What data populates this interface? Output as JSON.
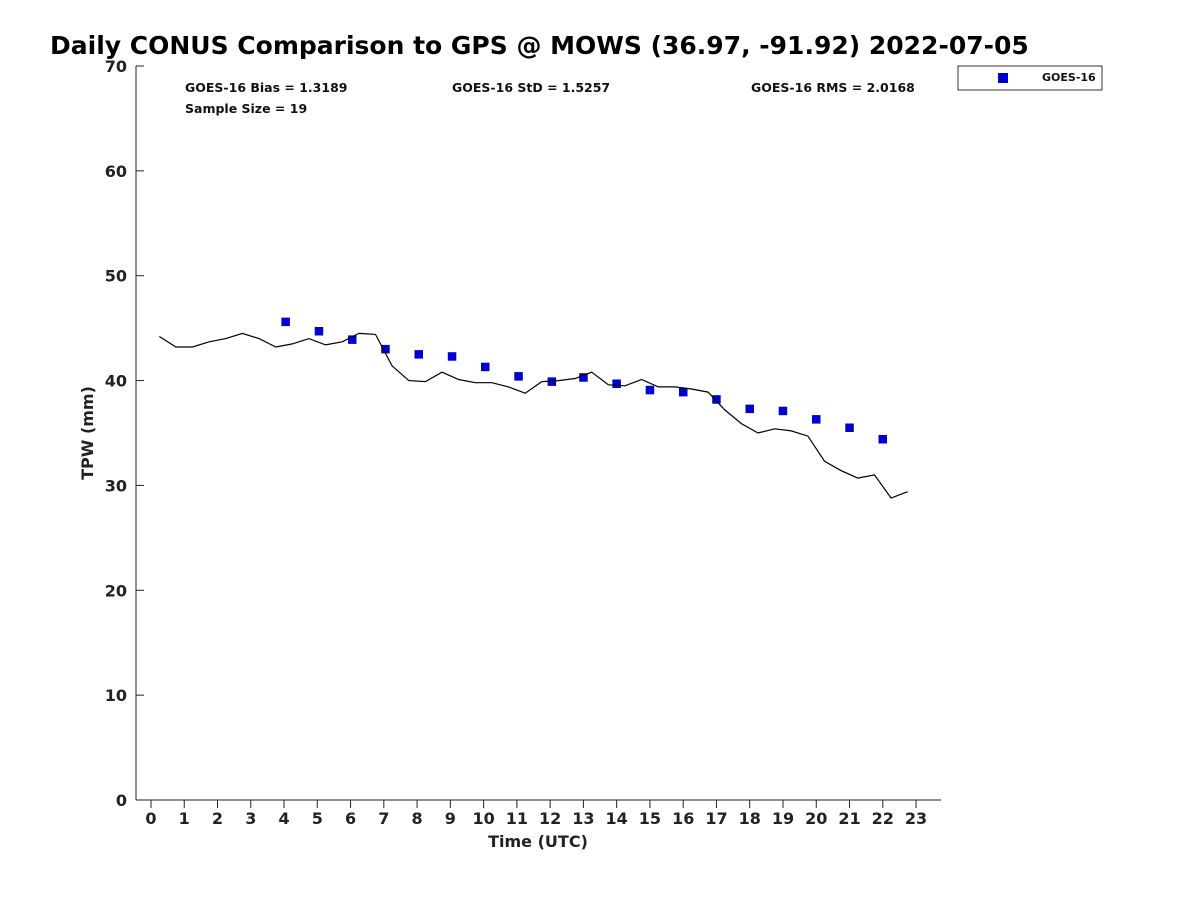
{
  "chart_data": {
    "type": "scatter",
    "title": "Daily CONUS Comparison to GPS @ MOWS (36.97, -91.92) 2022-07-05",
    "xlabel": "Time (UTC)",
    "ylabel": "TPW (mm)",
    "xlim": [
      -0.45,
      23.75
    ],
    "ylim": [
      0,
      70
    ],
    "x_ticks": [
      0,
      1,
      2,
      3,
      4,
      5,
      6,
      7,
      8,
      9,
      10,
      11,
      12,
      13,
      14,
      15,
      16,
      17,
      18,
      19,
      20,
      21,
      22,
      23
    ],
    "y_ticks": [
      0,
      10,
      20,
      30,
      40,
      50,
      60,
      70
    ],
    "grid": false,
    "legend_position": "outside-top-right",
    "stats": {
      "bias": "GOES-16 Bias = 1.3189",
      "std": "GOES-16 StD = 1.5257",
      "rms": "GOES-16 RMS = 2.0168",
      "sample": "Sample Size = 19"
    },
    "series": [
      {
        "name": "GOES-16",
        "kind": "markers",
        "color": "#0000d0",
        "x": [
          4.05,
          5.05,
          6.05,
          7.05,
          8.05,
          9.05,
          10.05,
          11.05,
          12.05,
          13.0,
          14.0,
          15.0,
          16.0,
          17.0,
          18.0,
          19.0,
          20.0,
          21.0,
          22.0
        ],
        "y": [
          45.6,
          44.7,
          43.9,
          43.0,
          42.5,
          42.3,
          41.3,
          40.4,
          39.9,
          40.3,
          39.7,
          39.1,
          38.9,
          38.2,
          37.3,
          37.1,
          36.3,
          35.5,
          34.4
        ]
      },
      {
        "kind": "line",
        "color": "#000000",
        "x": [
          0.25,
          0.75,
          1.25,
          1.75,
          2.25,
          2.75,
          3.25,
          3.75,
          4.25,
          4.75,
          5.25,
          5.75,
          6.25,
          6.75,
          7.25,
          7.75,
          8.25,
          8.75,
          9.25,
          9.75,
          10.25,
          10.75,
          11.25,
          11.75,
          12.25,
          12.75,
          13.25,
          13.75,
          14.25,
          14.75,
          15.25,
          15.75,
          16.25,
          16.75,
          17.25,
          17.75,
          18.25,
          18.75,
          19.25,
          19.75,
          20.25,
          20.75,
          21.25,
          21.75,
          22.25,
          22.75
        ],
        "y": [
          44.2,
          43.2,
          43.2,
          43.7,
          44.0,
          44.5,
          44.0,
          43.2,
          43.5,
          44.0,
          43.4,
          43.7,
          44.5,
          44.4,
          41.4,
          40.0,
          39.9,
          40.8,
          40.1,
          39.8,
          39.8,
          39.4,
          38.8,
          39.9,
          40.0,
          40.2,
          40.8,
          39.6,
          39.5,
          40.1,
          39.4,
          39.4,
          39.2,
          38.9,
          37.2,
          35.9,
          35.0,
          35.4,
          35.2,
          34.7,
          32.3,
          31.4,
          30.7,
          31.0,
          28.8,
          29.4
        ]
      }
    ]
  }
}
